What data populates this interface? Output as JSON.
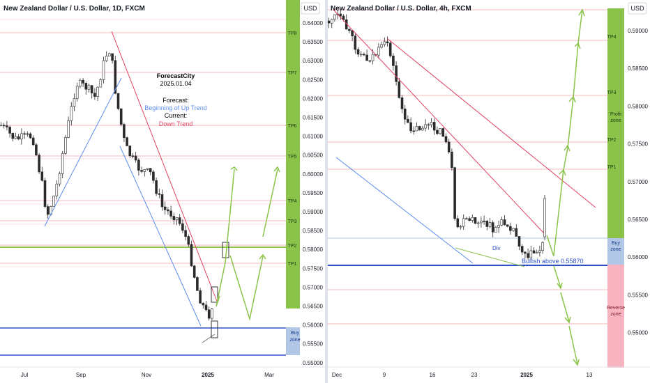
{
  "left_chart": {
    "title": "New Zealand Dollar / U.S. Dollar, 1D, FXCM",
    "currency": "USD",
    "y_labels": [
      "0.64000",
      "0.63500",
      "0.63000",
      "0.62500",
      "0.62000",
      "0.61500",
      "0.61000",
      "0.60500",
      "0.60000",
      "0.59500",
      "0.59000",
      "0.58500",
      "0.58000",
      "0.57500",
      "0.57000",
      "0.56500",
      "0.56000",
      "0.55500",
      "0.55000"
    ],
    "x_labels": [
      "Jul",
      "Sep",
      "Nov",
      "2025",
      "Mar"
    ],
    "tp_labels": [
      "TP8",
      "TP7",
      "TP6",
      "TP5",
      "TP4",
      "TP3",
      "TP2",
      "TP1"
    ],
    "buy_zone_label": [
      "Buy",
      "zone"
    ],
    "annotation": {
      "brand": "ForecastCity",
      "date": "2025.01.04",
      "forecast_label": "Forecast:",
      "forecast_value": "Beginning of Up Trend",
      "current_label": "Current:",
      "current_value": "Down Trend"
    }
  },
  "right_chart": {
    "title": "New Zealand Dollar / U.S. Dollar, 4h, FXCM",
    "currency": "USD",
    "y_labels": [
      "0.59000",
      "0.58500",
      "0.58000",
      "0.57500",
      "0.57000",
      "0.56500",
      "0.56000",
      "0.55500",
      "0.55000"
    ],
    "x_labels": [
      "Dec",
      "9",
      "16",
      "23",
      "2025",
      "13"
    ],
    "tp_labels": [
      "TP4",
      "TP3",
      "TP2",
      "TP1"
    ],
    "profit_zone_label": [
      "Profit",
      "zone"
    ],
    "buy_zone_label": [
      "Buy",
      "zone"
    ],
    "reverse_zone_label": [
      "Reverse",
      "zone"
    ],
    "div_label": "Div",
    "bullish_label": "Bullish above 0.55870"
  },
  "colors": {
    "up": "#26a69a",
    "candle": "#2b2b2b",
    "tp_line": "#f0a0a6",
    "trend_red": "#e0415f",
    "trend_blue": "#5b8def",
    "buy_line": "#2d50c9",
    "green_zone": "#8bc34a",
    "buy_zone": "#b2c7e6",
    "reverse_zone": "#f7b4c0",
    "forecast_arrow": "#8bc34a"
  }
}
